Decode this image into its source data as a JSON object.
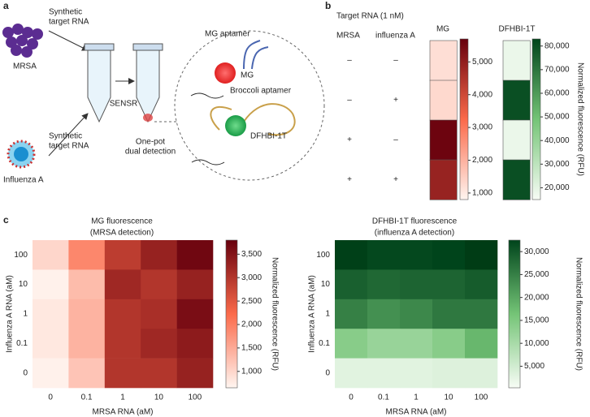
{
  "panel_labels": {
    "a": "a",
    "b": "b",
    "c": "c"
  },
  "diagram": {
    "mrsa": "MRSA",
    "influenza": "Influenza A",
    "synthetic_rna_top": [
      "Synthetic",
      "target RNA"
    ],
    "synthetic_rna_bottom": [
      "Synthetic",
      "target RNA"
    ],
    "sensr": "SENSR",
    "one_pot": [
      "One-pot",
      "dual detection"
    ],
    "mg_aptamer": "MG aptamer",
    "mg": "MG",
    "broccoli_aptamer": "Broccoli aptamer",
    "dfhbi": "DFHBI-1T"
  },
  "panel_b": {
    "header": "Target RNA (1 nM)",
    "columns": [
      "MRSA",
      "influenza A"
    ],
    "rows": [
      [
        "–",
        "–"
      ],
      [
        "–",
        "+"
      ],
      [
        "+",
        "–"
      ],
      [
        "+",
        "+"
      ]
    ]
  },
  "chart_data": [
    {
      "type": "heatmap",
      "title": [
        "MG"
      ],
      "values": [
        [
          1200
        ],
        [
          1300
        ],
        [
          5600
        ],
        [
          4900
        ]
      ],
      "zlim": [
        800,
        5700
      ],
      "zticks": [
        {
          "value": 1000,
          "label": "1,000"
        },
        {
          "value": 2000,
          "label": "2,000"
        },
        {
          "value": 3000,
          "label": "3,000"
        },
        {
          "value": 4000,
          "label": "4,000"
        },
        {
          "value": 5000,
          "label": "5,000"
        }
      ],
      "colors": [
        "#fff5f0",
        "#fb6a4a",
        "#67000d"
      ]
    },
    {
      "type": "heatmap",
      "title": [
        "DFHBI-1T"
      ],
      "values": [
        [
          18000
        ],
        [
          80000
        ],
        [
          18000
        ],
        [
          80000
        ]
      ],
      "zlim": [
        15000,
        83000
      ],
      "zticks": [
        {
          "value": 20000,
          "label": "20,000"
        },
        {
          "value": 30000,
          "label": "30,000"
        },
        {
          "value": 40000,
          "label": "40,000"
        },
        {
          "value": 50000,
          "label": "50,000"
        },
        {
          "value": 60000,
          "label": "60,000"
        },
        {
          "value": 70000,
          "label": "70,000"
        },
        {
          "value": 80000,
          "label": "80,000"
        }
      ],
      "z_label": "Normalized fluorescence (RFU)",
      "colors": [
        "#f7fcf5",
        "#74c476",
        "#00441b"
      ]
    },
    {
      "type": "heatmap",
      "title": [
        "MG fluorescence",
        "(MRSA detection)"
      ],
      "x_label": "MRSA RNA (aM)",
      "y_label": "Influenza A RNA (aM)",
      "x_categories": [
        "0",
        "0.1",
        "1",
        "10",
        "100"
      ],
      "y_categories": [
        "100",
        "10",
        "1",
        "0.1",
        "0"
      ],
      "values": [
        [
          1000,
          1900,
          2900,
          3300,
          3700
        ],
        [
          700,
          1300,
          3200,
          3000,
          3300
        ],
        [
          800,
          1400,
          3000,
          3100,
          3600
        ],
        [
          800,
          1400,
          3000,
          3200,
          3400
        ],
        [
          700,
          1200,
          3000,
          3000,
          3300
        ]
      ],
      "zlim": [
        650,
        3800
      ],
      "zticks": [
        {
          "value": 1000,
          "label": "1,000"
        },
        {
          "value": 1500,
          "label": "1,500"
        },
        {
          "value": 2000,
          "label": "2,000"
        },
        {
          "value": 2500,
          "label": "2,500"
        },
        {
          "value": 3000,
          "label": "3,000"
        },
        {
          "value": 3500,
          "label": "3,500"
        }
      ],
      "z_label": "Normalized fluorescence (RFU)",
      "colors": [
        "#fff5f0",
        "#fb6a4a",
        "#67000d"
      ]
    },
    {
      "type": "heatmap",
      "title": [
        "DFHBI-1T fluorescence",
        "(influenza A detection)"
      ],
      "x_label": "MRSA RNA (aM)",
      "y_label": "Influenza A RNA (aM)",
      "x_categories": [
        "0",
        "0.1",
        "1",
        "10",
        "100"
      ],
      "y_categories": [
        "100",
        "10",
        "1",
        "0.1",
        "0"
      ],
      "values": [
        [
          33000,
          32000,
          32000,
          32500,
          33500
        ],
        [
          29000,
          28000,
          28500,
          28500,
          29500
        ],
        [
          25000,
          23000,
          24000,
          26000,
          26000
        ],
        [
          14000,
          12000,
          12000,
          14000,
          18000
        ],
        [
          3000,
          3000,
          3000,
          3500,
          3500
        ]
      ],
      "zlim": [
        300,
        32500
      ],
      "zticks": [
        {
          "value": 5000,
          "label": "5,000"
        },
        {
          "value": 10000,
          "label": "10,000"
        },
        {
          "value": 15000,
          "label": "15,000"
        },
        {
          "value": 20000,
          "label": "20,000"
        },
        {
          "value": 25000,
          "label": "25,000"
        },
        {
          "value": 30000,
          "label": "30,000"
        }
      ],
      "z_label": "Normalized fluorescence (RFU)",
      "colors": [
        "#f7fcf5",
        "#74c476",
        "#00441b"
      ]
    }
  ]
}
